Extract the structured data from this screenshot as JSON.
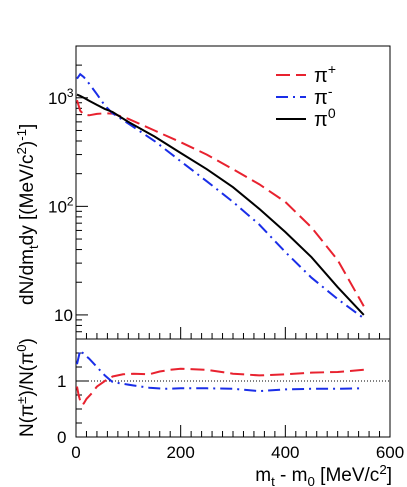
{
  "chart_data": [
    {
      "type": "line",
      "ylabel": "dN/dm_{t}dy [(MeV/c^{2})^{-1}]",
      "y_log": true,
      "xlim": [
        0,
        600
      ],
      "ylim": [
        6,
        3000
      ],
      "y_tick_labels": [
        "10",
        "10^2",
        "10^3"
      ],
      "legend_position": "top-right",
      "series": [
        {
          "name": "π+",
          "color": "#e8222f",
          "dash": "long-dash",
          "x": [
            2,
            8,
            15,
            25,
            40,
            55,
            70,
            100,
            150,
            200,
            250,
            300,
            350,
            400,
            450,
            500,
            550
          ],
          "y": [
            950,
            760,
            700,
            690,
            710,
            720,
            715,
            640,
            500,
            390,
            300,
            220,
            160,
            110,
            64,
            32,
            12
          ]
        },
        {
          "name": "π-",
          "color": "#1a2ee8",
          "dash": "dash-dot",
          "x": [
            2,
            8,
            15,
            25,
            40,
            55,
            70,
            100,
            150,
            200,
            250,
            300,
            350,
            400,
            450,
            500,
            550
          ],
          "y": [
            1500,
            1650,
            1550,
            1350,
            1080,
            850,
            720,
            580,
            400,
            260,
            170,
            110,
            68,
            38,
            22,
            14,
            9.3
          ]
        },
        {
          "name": "π0",
          "color": "#000000",
          "dash": "solid",
          "x": [
            2,
            8,
            15,
            25,
            40,
            55,
            70,
            100,
            150,
            200,
            250,
            300,
            350,
            400,
            450,
            500,
            550
          ],
          "y": [
            1070,
            1040,
            1000,
            940,
            860,
            790,
            740,
            600,
            440,
            310,
            220,
            150,
            95,
            58,
            34,
            18,
            10
          ]
        }
      ]
    },
    {
      "type": "line",
      "xlabel": "m_{t} - m_{0} [MeV/c^{2}]",
      "ylabel": "N(π±)/N(π0)",
      "xlim": [
        0,
        600
      ],
      "ylim": [
        0,
        1.75
      ],
      "x_ticks": [
        0,
        200,
        400,
        600
      ],
      "y_ticks": [
        0,
        1
      ],
      "reference_line": 1,
      "series": [
        {
          "name": "π+",
          "color": "#e8222f",
          "dash": "long-dash",
          "x": [
            2,
            5,
            10,
            15,
            20,
            30,
            40,
            55,
            70,
            90,
            110,
            140,
            160,
            180,
            200,
            250,
            300,
            350,
            400,
            450,
            500,
            550
          ],
          "y": [
            0.9,
            0.75,
            0.58,
            0.6,
            0.68,
            0.78,
            0.9,
            1.0,
            1.08,
            1.12,
            1.13,
            1.12,
            1.17,
            1.2,
            1.22,
            1.2,
            1.13,
            1.1,
            1.12,
            1.15,
            1.16,
            1.2
          ]
        },
        {
          "name": "π-",
          "color": "#1a2ee8",
          "dash": "dash-dot",
          "x": [
            2,
            8,
            15,
            25,
            40,
            55,
            70,
            90,
            110,
            140,
            170,
            200,
            250,
            300,
            350,
            400,
            450,
            500,
            550
          ],
          "y": [
            1.3,
            1.55,
            1.48,
            1.4,
            1.25,
            1.1,
            0.98,
            0.95,
            0.92,
            0.88,
            0.86,
            0.87,
            0.87,
            0.86,
            0.82,
            0.85,
            0.86,
            0.86,
            0.87
          ]
        }
      ]
    }
  ]
}
